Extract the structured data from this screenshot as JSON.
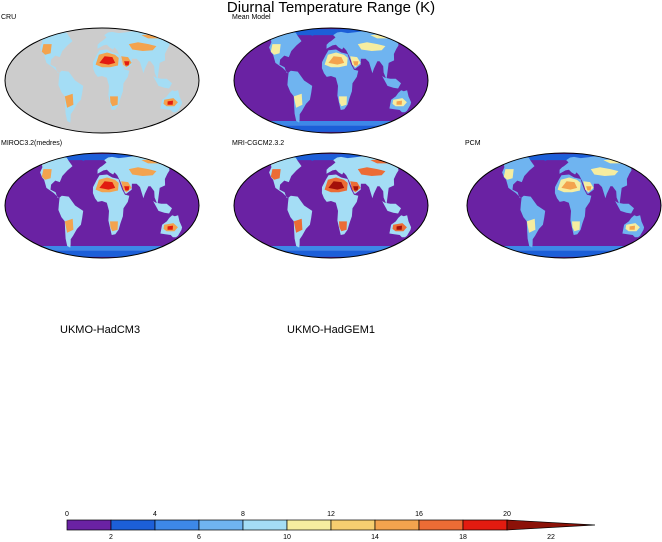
{
  "chart_data": {
    "type": "heatmap",
    "title": "Diurnal Temperature Range (K)",
    "panels": [
      {
        "name": "CRU",
        "ocean": "masked",
        "land_dtr": "high"
      },
      {
        "name": "Mean Model",
        "ocean": "low",
        "land_dtr": "moderate"
      },
      {
        "name": "MIROC3.2(medres)",
        "ocean": "low",
        "land_dtr": "high"
      },
      {
        "name": "MRI-CGCM2.3.2",
        "ocean": "low",
        "land_dtr": "highest"
      },
      {
        "name": "PCM",
        "ocean": "low",
        "land_dtr": "moderate"
      },
      {
        "name": "UKMO-HadCM3",
        "ocean": "none",
        "land_dtr": "none"
      },
      {
        "name": "UKMO-HadGEM1",
        "ocean": "none",
        "land_dtr": "none"
      }
    ],
    "colorbar": {
      "levels": [
        0,
        2,
        4,
        6,
        8,
        10,
        12,
        14,
        16,
        18,
        20,
        22
      ],
      "tick_labels": [
        "0",
        "2",
        "4",
        "6",
        "8",
        "10",
        "12",
        "14",
        "16",
        "18",
        "20",
        "22"
      ],
      "colors": [
        "#6a22a3",
        "#1c5fd8",
        "#3d88e8",
        "#6fb4f0",
        "#a4ddf5",
        "#f6eda0",
        "#f6cf70",
        "#f3a34e",
        "#ec6c35",
        "#e21b10",
        "#8c1208"
      ],
      "extend": "max"
    },
    "colors": {
      "missing": "#cccccc",
      "land_spread": [
        "#f6eda0",
        "#f6cf70",
        "#f3a34e",
        "#ec6c35",
        "#e21b10",
        "#a30f0a"
      ]
    }
  }
}
